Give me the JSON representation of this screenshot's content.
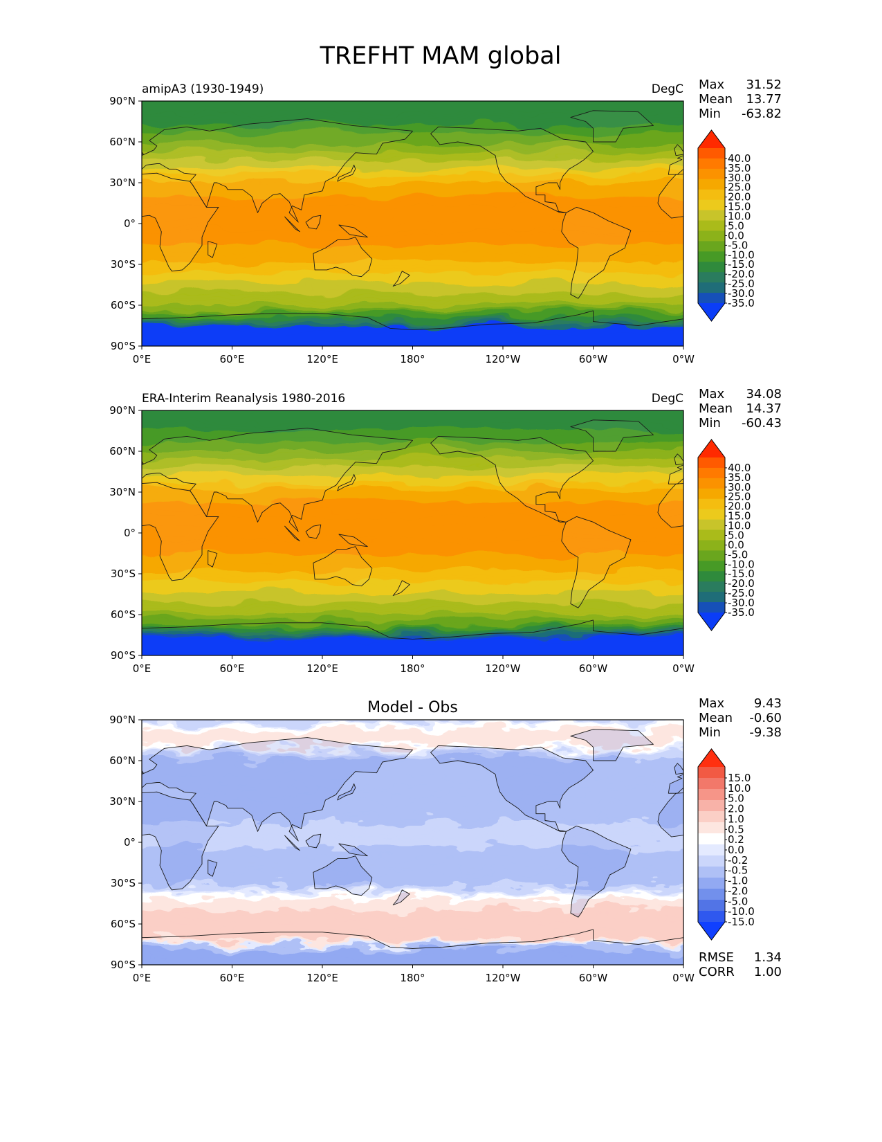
{
  "page_title": "TREFHT MAM global",
  "x_ticks": [
    "0°E",
    "60°E",
    "120°E",
    "180°",
    "120°W",
    "60°W",
    "0°W"
  ],
  "y_ticks": [
    "90°N",
    "60°N",
    "30°N",
    "0°",
    "30°S",
    "60°S",
    "90°S"
  ],
  "panels": [
    {
      "left_title": "amipA3 (1930-1949)",
      "center_title": "",
      "units": "DegC",
      "stats": [
        {
          "label": "Max",
          "value": "31.52"
        },
        {
          "label": "Mean",
          "value": "13.77"
        },
        {
          "label": "Min",
          "value": "-63.82"
        }
      ],
      "colorbar_labels": [
        "40.0",
        "35.0",
        "30.0",
        "25.0",
        "20.0",
        "15.0",
        "10.0",
        "5.0",
        "0.0",
        "-5.0",
        "-10.0",
        "-15.0",
        "-20.0",
        "-25.0",
        "-30.0",
        "-35.0"
      ],
      "colorbar_colors": [
        "#ff2a00",
        "#ff5a00",
        "#ff7a00",
        "#fb9200",
        "#f6a800",
        "#f4bd10",
        "#ecca1c",
        "#c8c42a",
        "#aabb1a",
        "#8cb21a",
        "#6aa61e",
        "#479a26",
        "#2f8a3c",
        "#2a7c5e",
        "#1f6d78",
        "#1650b8",
        "#0b3df7"
      ],
      "colorbar_top_color": "#ff2a00",
      "colorbar_bottom_color": "#0b3df7",
      "footer": []
    },
    {
      "left_title": "ERA-Interim Reanalysis 1980-2016",
      "center_title": "",
      "units": "DegC",
      "stats": [
        {
          "label": "Max",
          "value": "34.08"
        },
        {
          "label": "Mean",
          "value": "14.37"
        },
        {
          "label": "Min",
          "value": "-60.43"
        }
      ],
      "colorbar_labels": [
        "40.0",
        "35.0",
        "30.0",
        "25.0",
        "20.0",
        "15.0",
        "10.0",
        "5.0",
        "0.0",
        "-5.0",
        "-10.0",
        "-15.0",
        "-20.0",
        "-25.0",
        "-30.0",
        "-35.0"
      ],
      "colorbar_colors": [
        "#ff2a00",
        "#ff5a00",
        "#ff7a00",
        "#fb9200",
        "#f6a800",
        "#f4bd10",
        "#ecca1c",
        "#c8c42a",
        "#aabb1a",
        "#8cb21a",
        "#6aa61e",
        "#479a26",
        "#2f8a3c",
        "#2a7c5e",
        "#1f6d78",
        "#1650b8",
        "#0b3df7"
      ],
      "colorbar_top_color": "#ff2a00",
      "colorbar_bottom_color": "#0b3df7",
      "footer": []
    },
    {
      "left_title": "",
      "center_title": "Model - Obs",
      "units": "",
      "stats": [
        {
          "label": "Max",
          "value": "9.43"
        },
        {
          "label": "Mean",
          "value": "-0.60"
        },
        {
          "label": "Min",
          "value": "-9.38"
        }
      ],
      "colorbar_labels": [
        "15.0",
        "10.0",
        "5.0",
        "2.0",
        "1.0",
        "0.5",
        "0.2",
        "0.0",
        "-0.2",
        "-0.5",
        "-1.0",
        "-2.0",
        "-5.0",
        "-10.0",
        "-15.0"
      ],
      "colorbar_colors": [
        "#ff3010",
        "#f25a44",
        "#f2786a",
        "#f69588",
        "#f8b2a8",
        "#fbcfc6",
        "#fde6e0",
        "#ffffff",
        "#e4eaff",
        "#cbd6fb",
        "#afc0f6",
        "#92a9f2",
        "#7290ec",
        "#5274e6",
        "#2f58ef",
        "#1040ff"
      ],
      "colorbar_top_color": "#ff3010",
      "colorbar_bottom_color": "#1040ff",
      "footer": [
        {
          "label": "RMSE",
          "value": "1.34"
        },
        {
          "label": "CORR",
          "value": "1.00"
        }
      ]
    }
  ],
  "chart_data": [
    {
      "type": "heatmap",
      "title": "amipA3 (1930-1949)",
      "units": "DegC",
      "xlim": [
        0,
        360
      ],
      "ylim": [
        -90,
        90
      ],
      "x_tick_values": [
        0,
        60,
        120,
        180,
        240,
        300,
        360
      ],
      "y_tick_values": [
        90,
        60,
        30,
        0,
        -30,
        -60,
        -90
      ],
      "levels": [
        -35,
        -30,
        -25,
        -20,
        -15,
        -10,
        -5,
        0,
        5,
        10,
        15,
        20,
        25,
        30,
        35,
        40
      ],
      "colorbar_extend": "both",
      "zonal_profile": {
        "lat": [
          90,
          80,
          70,
          60,
          50,
          40,
          30,
          20,
          10,
          0,
          -10,
          -20,
          -30,
          -40,
          -50,
          -60,
          -70,
          -80,
          -90
        ],
        "value": [
          -20,
          -18,
          -14,
          -6,
          2,
          10,
          20,
          25,
          27,
          27,
          26,
          24,
          19,
          12,
          6,
          0,
          -15,
          -45,
          -55
        ]
      },
      "stats": {
        "max": 31.52,
        "mean": 13.77,
        "min": -63.82
      }
    },
    {
      "type": "heatmap",
      "title": "ERA-Interim Reanalysis 1980-2016",
      "units": "DegC",
      "xlim": [
        0,
        360
      ],
      "ylim": [
        -90,
        90
      ],
      "x_tick_values": [
        0,
        60,
        120,
        180,
        240,
        300,
        360
      ],
      "y_tick_values": [
        90,
        60,
        30,
        0,
        -30,
        -60,
        -90
      ],
      "levels": [
        -35,
        -30,
        -25,
        -20,
        -15,
        -10,
        -5,
        0,
        5,
        10,
        15,
        20,
        25,
        30,
        35,
        40
      ],
      "colorbar_extend": "both",
      "zonal_profile": {
        "lat": [
          90,
          80,
          70,
          60,
          50,
          40,
          30,
          20,
          10,
          0,
          -10,
          -20,
          -30,
          -40,
          -50,
          -60,
          -70,
          -80,
          -90
        ],
        "value": [
          -20,
          -17,
          -13,
          -5,
          3,
          11,
          21,
          26,
          28,
          28,
          27,
          24,
          19,
          12,
          6,
          0,
          -14,
          -44,
          -53
        ]
      },
      "stats": {
        "max": 34.08,
        "mean": 14.37,
        "min": -60.43
      }
    },
    {
      "type": "heatmap",
      "title": "Model - Obs",
      "xlim": [
        0,
        360
      ],
      "ylim": [
        -90,
        90
      ],
      "x_tick_values": [
        0,
        60,
        120,
        180,
        240,
        300,
        360
      ],
      "y_tick_values": [
        90,
        60,
        30,
        0,
        -30,
        -60,
        -90
      ],
      "levels": [
        -15,
        -10,
        -5,
        -2,
        -1,
        -0.5,
        -0.2,
        0,
        0.2,
        0.5,
        1,
        2,
        5,
        10,
        15
      ],
      "colorbar_extend": "both",
      "zonal_profile": {
        "lat": [
          90,
          80,
          70,
          60,
          50,
          40,
          30,
          20,
          10,
          0,
          -10,
          -20,
          -30,
          -40,
          -50,
          -60,
          -70,
          -80,
          -90
        ],
        "value": [
          -0.5,
          0.5,
          0.3,
          -0.8,
          -0.7,
          -0.6,
          -0.9,
          -0.8,
          -0.3,
          -0.4,
          -0.7,
          -0.9,
          -0.6,
          0.1,
          0.5,
          0.6,
          0.8,
          -1.2,
          -1.5
        ]
      },
      "stats": {
        "max": 9.43,
        "mean": -0.6,
        "min": -9.38,
        "rmse": 1.34,
        "corr": 1.0
      }
    }
  ]
}
